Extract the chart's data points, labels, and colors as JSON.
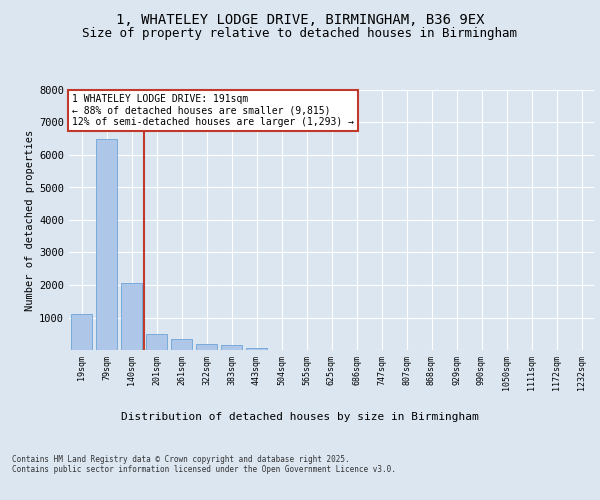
{
  "title1": "1, WHATELEY LODGE DRIVE, BIRMINGHAM, B36 9EX",
  "title2": "Size of property relative to detached houses in Birmingham",
  "xlabel": "Distribution of detached houses by size in Birmingham",
  "ylabel": "Number of detached properties",
  "categories": [
    "19sqm",
    "79sqm",
    "140sqm",
    "201sqm",
    "261sqm",
    "322sqm",
    "383sqm",
    "443sqm",
    "504sqm",
    "565sqm",
    "625sqm",
    "686sqm",
    "747sqm",
    "807sqm",
    "868sqm",
    "929sqm",
    "990sqm",
    "1050sqm",
    "1111sqm",
    "1172sqm",
    "1232sqm"
  ],
  "values": [
    1100,
    6500,
    2050,
    490,
    330,
    200,
    160,
    60,
    0,
    0,
    0,
    0,
    0,
    0,
    0,
    0,
    0,
    0,
    0,
    0,
    0
  ],
  "bar_color": "#aec6e8",
  "bar_edge_color": "#5b9bd5",
  "vline_color": "#c0392b",
  "annotation_text": "1 WHATELEY LODGE DRIVE: 191sqm\n← 88% of detached houses are smaller (9,815)\n12% of semi-detached houses are larger (1,293) →",
  "annotation_box_color": "#ffffff",
  "annotation_box_edge": "#c0392b",
  "bg_color": "#dce6f1",
  "plot_bg_color": "#dce6f1",
  "grid_color": "#ffffff",
  "footer": "Contains HM Land Registry data © Crown copyright and database right 2025.\nContains public sector information licensed under the Open Government Licence v3.0.",
  "ylim": [
    0,
    8000
  ],
  "yticks": [
    0,
    1000,
    2000,
    3000,
    4000,
    5000,
    6000,
    7000,
    8000
  ],
  "title1_fontsize": 10,
  "title2_fontsize": 9,
  "font_family": "monospace"
}
